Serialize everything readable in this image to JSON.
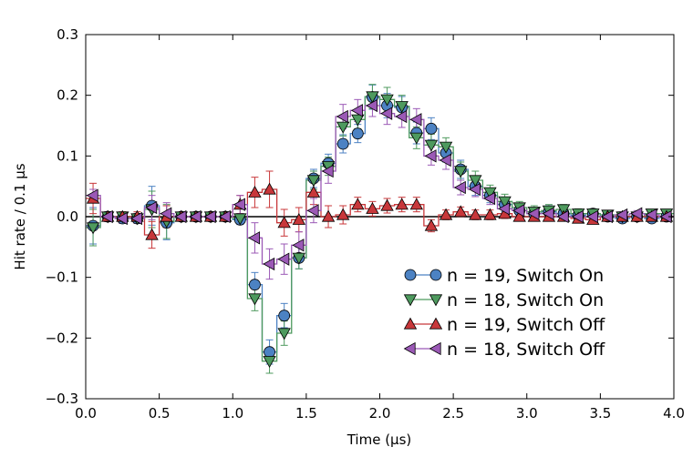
{
  "chart_data": {
    "type": "scatter",
    "title": "",
    "xlabel": "Time (μs)",
    "ylabel": "Hit rate / 0.1 μs",
    "xlim": [
      0.0,
      4.0
    ],
    "ylim": [
      -0.3,
      0.3
    ],
    "xticks": [
      0.0,
      0.5,
      1.0,
      1.5,
      2.0,
      2.5,
      3.0,
      3.5,
      4.0
    ],
    "xtick_labels": [
      "0.0",
      "0.5",
      "1.0",
      "1.5",
      "2.0",
      "2.5",
      "3.0",
      "3.5",
      "4.0"
    ],
    "yticks": [
      -0.3,
      -0.2,
      -0.1,
      0.0,
      0.1,
      0.2,
      0.3
    ],
    "ytick_labels": [
      "−0.3",
      "−0.2",
      "−0.1",
      "0.0",
      "0.1",
      "0.2",
      "0.3"
    ],
    "grid": false,
    "legend_position": "lower-right",
    "zero_line": true,
    "x": [
      0.05,
      0.15,
      0.25,
      0.35,
      0.45,
      0.55,
      0.65,
      0.75,
      0.85,
      0.95,
      1.05,
      1.15,
      1.25,
      1.35,
      1.45,
      1.55,
      1.65,
      1.75,
      1.85,
      1.95,
      2.05,
      2.15,
      2.25,
      2.35,
      2.45,
      2.55,
      2.65,
      2.75,
      2.85,
      2.95,
      3.05,
      3.15,
      3.25,
      3.35,
      3.45,
      3.55,
      3.65,
      3.75,
      3.85,
      3.95
    ],
    "series": [
      {
        "name": "n = 19, Switch On",
        "marker": "circle",
        "color": "#4c82c3",
        "y": [
          -0.015,
          0.0,
          -0.003,
          -0.003,
          0.018,
          -0.01,
          0.0,
          0.0,
          0.0,
          0.0,
          -0.005,
          -0.112,
          -0.223,
          -0.163,
          -0.068,
          0.063,
          0.088,
          0.12,
          0.137,
          0.197,
          0.183,
          0.18,
          0.138,
          0.145,
          0.105,
          0.078,
          0.05,
          0.035,
          0.02,
          0.01,
          0.005,
          0.008,
          0.005,
          0.002,
          0.005,
          0.0,
          -0.003,
          0.0,
          -0.003,
          0.0
        ],
        "err": [
          0.03,
          0.008,
          0.008,
          0.008,
          0.032,
          0.028,
          0.005,
          0.005,
          0.005,
          0.005,
          0.008,
          0.02,
          0.02,
          0.02,
          0.018,
          0.015,
          0.015,
          0.015,
          0.015,
          0.02,
          0.02,
          0.018,
          0.018,
          0.018,
          0.015,
          0.015,
          0.015,
          0.012,
          0.012,
          0.01,
          0.01,
          0.01,
          0.008,
          0.008,
          0.008,
          0.005,
          0.005,
          0.005,
          0.005,
          0.005
        ]
      },
      {
        "name": "n = 18, Switch On",
        "marker": "triangle-down",
        "color": "#4e9a5e",
        "y": [
          -0.018,
          0.0,
          0.0,
          -0.003,
          0.012,
          -0.008,
          0.0,
          0.0,
          0.0,
          0.0,
          -0.003,
          -0.135,
          -0.238,
          -0.192,
          -0.068,
          0.06,
          0.083,
          0.148,
          0.16,
          0.198,
          0.193,
          0.182,
          0.13,
          0.118,
          0.115,
          0.075,
          0.06,
          0.04,
          0.025,
          0.015,
          0.008,
          0.01,
          0.012,
          0.005,
          0.005,
          0.003,
          0.0,
          0.0,
          0.005,
          0.005
        ],
        "err": [
          0.03,
          0.008,
          0.008,
          0.008,
          0.03,
          0.028,
          0.005,
          0.005,
          0.005,
          0.005,
          0.008,
          0.02,
          0.02,
          0.02,
          0.018,
          0.015,
          0.015,
          0.015,
          0.015,
          0.02,
          0.02,
          0.018,
          0.018,
          0.018,
          0.015,
          0.015,
          0.015,
          0.012,
          0.012,
          0.01,
          0.01,
          0.01,
          0.008,
          0.008,
          0.008,
          0.005,
          0.005,
          0.005,
          0.005,
          0.005
        ]
      },
      {
        "name": "n = 19, Switch Off",
        "marker": "triangle-up",
        "color": "#c8373a",
        "y": [
          0.03,
          0.0,
          0.0,
          0.0,
          -0.03,
          0.0,
          0.0,
          0.0,
          0.0,
          0.0,
          0.02,
          0.04,
          0.045,
          -0.01,
          -0.005,
          0.04,
          0.0,
          0.003,
          0.02,
          0.013,
          0.018,
          0.02,
          0.02,
          -0.015,
          0.003,
          0.008,
          0.003,
          0.003,
          0.005,
          0.0,
          0.0,
          0.0,
          0.0,
          -0.003,
          -0.005,
          0.0,
          0.0,
          0.0,
          0.0,
          0.0
        ],
        "err": [
          0.025,
          0.008,
          0.008,
          0.008,
          0.022,
          0.018,
          0.005,
          0.005,
          0.005,
          0.005,
          0.015,
          0.025,
          0.03,
          0.022,
          0.02,
          0.02,
          0.018,
          0.015,
          0.012,
          0.012,
          0.012,
          0.012,
          0.012,
          0.01,
          0.008,
          0.008,
          0.008,
          0.008,
          0.008,
          0.005,
          0.005,
          0.005,
          0.005,
          0.005,
          0.005,
          0.005,
          0.005,
          0.005,
          0.005,
          0.005
        ]
      },
      {
        "name": "n = 18, Switch Off",
        "marker": "triangle-left",
        "color": "#9b59b6",
        "y": [
          0.035,
          0.0,
          -0.003,
          -0.003,
          0.015,
          0.005,
          0.0,
          0.0,
          0.0,
          0.0,
          0.02,
          -0.035,
          -0.078,
          -0.07,
          -0.047,
          0.01,
          0.075,
          0.165,
          0.175,
          0.183,
          0.17,
          0.165,
          0.16,
          0.1,
          0.093,
          0.048,
          0.045,
          0.03,
          0.013,
          0.01,
          0.005,
          0.005,
          0.0,
          0.0,
          0.0,
          0.0,
          0.003,
          0.005,
          0.003,
          0.0
        ],
        "err": [
          0.01,
          0.008,
          0.008,
          0.008,
          0.02,
          0.018,
          0.005,
          0.005,
          0.005,
          0.005,
          0.015,
          0.025,
          0.025,
          0.025,
          0.022,
          0.02,
          0.02,
          0.02,
          0.018,
          0.018,
          0.018,
          0.018,
          0.018,
          0.015,
          0.015,
          0.012,
          0.012,
          0.01,
          0.01,
          0.008,
          0.008,
          0.008,
          0.005,
          0.005,
          0.005,
          0.005,
          0.005,
          0.005,
          0.005,
          0.005
        ]
      }
    ]
  }
}
